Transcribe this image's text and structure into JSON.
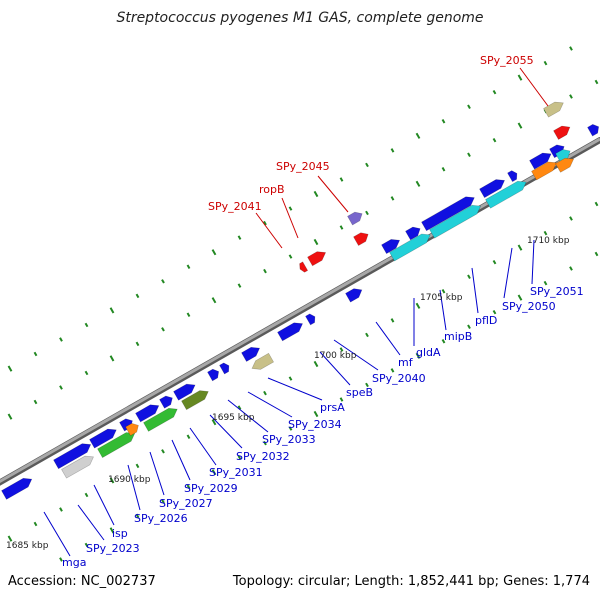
{
  "title": "Streptococcus pyogenes M1 GAS, complete genome",
  "footer": {
    "accession": "Accession: NC_002737",
    "summary": "Topology: circular; Length: 1,852,441 bp; Genes: 1,774"
  },
  "scale_labels": [
    "1685 kbp",
    "1690 kbp",
    "1695 kbp",
    "1700 kbp",
    "1705 kbp",
    "1710 kbp"
  ],
  "colors": {
    "backbone": "#8c8c8c",
    "gene_blue": "#1010e0",
    "gene_red": "#ee1111",
    "gene_tan": "#c8c088",
    "gene_purple": "#7766cc",
    "gene_cyan": "#22d0d8",
    "gene_green": "#33bb33",
    "gene_darkgreen": "#668822",
    "gene_gray": "#cfcfcf",
    "gene_orange": "#ff8811",
    "tick_green": "#228822",
    "label_blue": "#0000cc",
    "label_red": "#cc0000"
  },
  "gene_labels_bottom": [
    "mga",
    "SPy_2023",
    "isp",
    "SPy_2026",
    "SPy_2027",
    "SPy_2029",
    "SPy_2031",
    "SPy_2032",
    "SPy_2033",
    "SPy_2034",
    "prsA",
    "speB",
    "SPy_2040",
    "mf",
    "gldA",
    "mipB",
    "pflD",
    "SPy_2050",
    "SPy_2051"
  ],
  "gene_labels_top": [
    "SPy_2041",
    "ropB",
    "SPy_2045",
    "SPy_2055"
  ]
}
